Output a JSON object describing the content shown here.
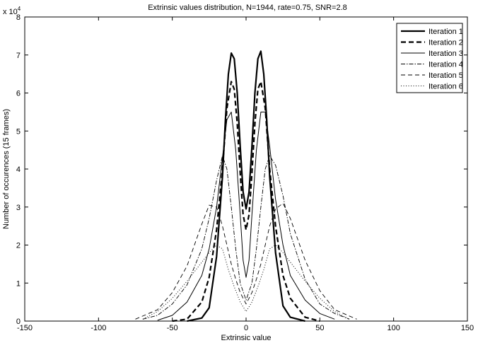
{
  "chart_data": {
    "type": "line",
    "title": "Extrinsic values distribution, N=1944, rate=0.75, SNR=2.8",
    "xlabel": "Extrinsic value",
    "ylabel": "Number of occurences (15 frames)",
    "y_multiplier_label": "x 10",
    "y_multiplier_exponent": "4",
    "xlim": [
      -150,
      150
    ],
    "ylim": [
      0,
      8
    ],
    "xticks": [
      -150,
      -100,
      -50,
      0,
      50,
      100,
      150
    ],
    "yticks": [
      0,
      1,
      2,
      3,
      4,
      5,
      6,
      7,
      8
    ],
    "legend": "top-right",
    "grid": false,
    "series": [
      {
        "name": "Iteration 1",
        "style": "solid-thick",
        "x": [
          -40,
          -30,
          -25,
          -20,
          -16,
          -14,
          -12,
          -10,
          -8,
          -6,
          -4,
          -2,
          0,
          2,
          4,
          6,
          8,
          10,
          12,
          14,
          16,
          20,
          25,
          30,
          40
        ],
        "y": [
          0,
          0.08,
          0.35,
          1.7,
          3.8,
          5.3,
          6.5,
          7.05,
          6.9,
          6.0,
          4.6,
          3.4,
          2.95,
          3.4,
          4.6,
          6.0,
          6.9,
          7.1,
          6.5,
          5.3,
          3.8,
          1.8,
          0.4,
          0.1,
          0
        ]
      },
      {
        "name": "Iteration 2",
        "style": "dashed-thick",
        "x": [
          -50,
          -40,
          -30,
          -25,
          -20,
          -16,
          -13,
          -10,
          -8,
          -6,
          -4,
          -2,
          0,
          2,
          4,
          6,
          8,
          10,
          13,
          16,
          20,
          25,
          30,
          40,
          50
        ],
        "y": [
          0,
          0.05,
          0.5,
          1.15,
          2.4,
          4.0,
          5.6,
          6.3,
          6.1,
          5.2,
          3.9,
          2.8,
          2.4,
          2.8,
          3.9,
          5.2,
          6.1,
          6.3,
          5.6,
          4.0,
          2.5,
          1.2,
          0.6,
          0.1,
          0
        ]
      },
      {
        "name": "Iteration 3",
        "style": "solid-thin",
        "x": [
          -60,
          -50,
          -40,
          -30,
          -25,
          -20,
          -16,
          -13,
          -10,
          -7,
          -4,
          -2,
          0,
          2,
          4,
          7,
          10,
          13,
          16,
          20,
          25,
          30,
          40,
          50,
          60
        ],
        "y": [
          0.02,
          0.15,
          0.5,
          1.2,
          1.9,
          3.0,
          4.3,
          5.3,
          5.5,
          4.5,
          2.8,
          1.6,
          1.15,
          1.6,
          2.8,
          4.5,
          5.5,
          5.5,
          4.6,
          3.2,
          2.0,
          1.2,
          0.55,
          0.2,
          0.05
        ]
      },
      {
        "name": "Iteration 4",
        "style": "dash-dot",
        "x": [
          -70,
          -60,
          -50,
          -40,
          -30,
          -25,
          -20,
          -16,
          -13,
          -10,
          -7,
          -4,
          0,
          4,
          7,
          10,
          13,
          16,
          20,
          25,
          30,
          40,
          50,
          60,
          70
        ],
        "y": [
          0.05,
          0.15,
          0.45,
          0.95,
          1.9,
          2.7,
          3.7,
          4.35,
          4.0,
          3.0,
          1.9,
          1.0,
          0.55,
          1.0,
          1.9,
          3.0,
          4.0,
          4.35,
          4.1,
          3.3,
          2.3,
          1.1,
          0.45,
          0.2,
          0.05
        ]
      },
      {
        "name": "Iteration 5",
        "style": "dashed-thin",
        "x": [
          -75,
          -60,
          -50,
          -40,
          -30,
          -25,
          -20,
          -16,
          -13,
          -10,
          -7,
          -4,
          0,
          4,
          7,
          10,
          13,
          16,
          20,
          25,
          30,
          40,
          50,
          60,
          75
        ],
        "y": [
          0.05,
          0.3,
          0.75,
          1.45,
          2.55,
          3.05,
          3.0,
          2.5,
          2.0,
          1.5,
          1.1,
          0.75,
          0.45,
          0.75,
          1.1,
          1.5,
          2.0,
          2.5,
          2.95,
          3.1,
          2.7,
          1.6,
          0.8,
          0.3,
          0.05
        ]
      },
      {
        "name": "Iteration 6",
        "style": "dotted",
        "x": [
          -70,
          -60,
          -50,
          -40,
          -30,
          -25,
          -20,
          -16,
          -12,
          -8,
          -4,
          0,
          4,
          8,
          12,
          16,
          20,
          25,
          30,
          40,
          50,
          60,
          70
        ],
        "y": [
          0.05,
          0.25,
          0.6,
          1.05,
          1.55,
          1.8,
          2.0,
          1.9,
          1.35,
          0.9,
          0.5,
          0.25,
          0.5,
          0.9,
          1.35,
          1.9,
          2.0,
          1.8,
          1.55,
          1.05,
          0.6,
          0.25,
          0.05
        ]
      }
    ]
  }
}
